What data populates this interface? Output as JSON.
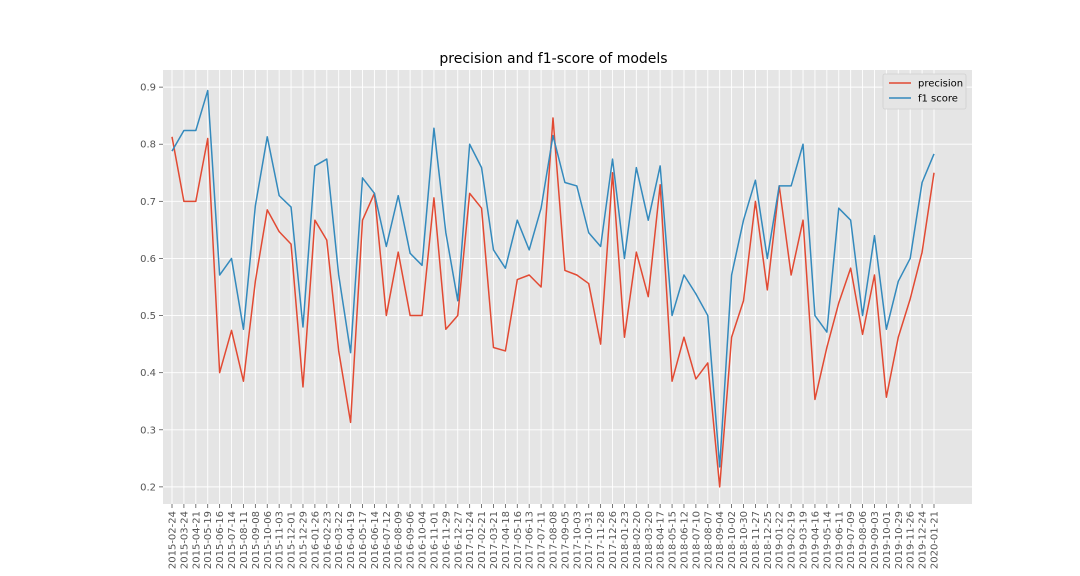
{
  "chart_data": {
    "type": "line",
    "title": "precision and f1-score of models",
    "xlabel": "",
    "ylabel": "",
    "grid": true,
    "legend_position": "top-right",
    "ylim": [
      0.17,
      0.93
    ],
    "yticks": [
      "0.2",
      "0.3",
      "0.4",
      "0.5",
      "0.6",
      "0.7",
      "0.8",
      "0.9"
    ],
    "x": [
      "2015-02-24",
      "2015-03-24",
      "2015-04-21",
      "2015-05-19",
      "2015-06-16",
      "2015-07-14",
      "2015-08-11",
      "2015-09-08",
      "2015-10-06",
      "2015-11-03",
      "2015-12-01",
      "2015-12-29",
      "2016-01-26",
      "2016-02-23",
      "2016-03-22",
      "2016-04-19",
      "2016-05-17",
      "2016-06-14",
      "2016-07-12",
      "2016-08-09",
      "2016-09-06",
      "2016-10-04",
      "2016-11-01",
      "2016-11-29",
      "2016-12-27",
      "2017-01-24",
      "2017-02-21",
      "2017-03-21",
      "2017-04-18",
      "2017-05-16",
      "2017-06-13",
      "2017-07-11",
      "2017-08-08",
      "2017-09-05",
      "2017-10-03",
      "2017-10-31",
      "2017-11-28",
      "2017-12-26",
      "2018-01-23",
      "2018-02-20",
      "2018-03-20",
      "2018-04-17",
      "2018-05-15",
      "2018-06-12",
      "2018-07-10",
      "2018-08-07",
      "2018-09-04",
      "2018-10-02",
      "2018-10-30",
      "2018-11-27",
      "2018-12-25",
      "2019-01-22",
      "2019-02-19",
      "2019-03-19",
      "2019-04-16",
      "2019-05-14",
      "2019-06-11",
      "2019-07-09",
      "2019-08-06",
      "2019-09-03",
      "2019-10-01",
      "2019-10-29",
      "2019-11-26",
      "2019-12-24",
      "2020-01-21"
    ],
    "xtick_labels": [
      "2015-02-24",
      "2015-03-24",
      "2015-04-21",
      "2015-05-19",
      "2015-06-16",
      "2015-07-14",
      "2015-08-11",
      "2015-09-08",
      "2015-10-06",
      "2015-11-03",
      "2015-12-01",
      "2015-12-29",
      "2016-01-26",
      "2016-02-23",
      "2016-03-22",
      "2016-04-19",
      "2016-05-17",
      "2016-06-14",
      "2016-07-12",
      "2016-08-09",
      "2016-09-06",
      "2016-10-04",
      "2016-11-01",
      "2016-11-29",
      "2016-12-27",
      "2017-01-24",
      "2017-02-21",
      "2017-03-21",
      "2017-04-18",
      "2017-05-16",
      "2017-06-13",
      "2017-07-11",
      "2017-08-08",
      "2017-09-05",
      "2017-10-03",
      "2017-10-31",
      "2017-11-28",
      "2017-12-26",
      "2018-01-23",
      "2018-02-20",
      "2018-03-20",
      "2018-04-17",
      "2018-05-15",
      "2018-06-12",
      "2018-07-10",
      "2018-08-07",
      "2018-09-04",
      "2018-10-02",
      "2018-10-30",
      "2018-11-27",
      "2018-12-25",
      "2019-01-22",
      "2019-02-19",
      "2019-03-19",
      "2019-04-16",
      "2019-05-14",
      "2019-06-11",
      "2019-07-09",
      "2019-08-06",
      "2019-09-03",
      "2019-10-01",
      "2019-10-29",
      "2019-11-26",
      "2019-12-24",
      "2020-01-21"
    ],
    "series": [
      {
        "name": "precision",
        "color": "#e24a33",
        "values": [
          0.813,
          0.7,
          0.7,
          0.81,
          0.4,
          0.474,
          0.385,
          0.56,
          0.685,
          0.647,
          0.625,
          0.375,
          0.667,
          0.632,
          0.438,
          0.313,
          0.667,
          0.714,
          0.5,
          0.611,
          0.5,
          0.5,
          0.706,
          0.476,
          0.5,
          0.714,
          0.688,
          0.444,
          0.438,
          0.563,
          0.571,
          0.55,
          0.846,
          0.579,
          0.571,
          0.556,
          0.45,
          0.75,
          0.462,
          0.611,
          0.533,
          0.729,
          0.385,
          0.462,
          0.389,
          0.417,
          0.2,
          0.462,
          0.526,
          0.7,
          0.545,
          0.727,
          0.571,
          0.667,
          0.353,
          0.444,
          0.522,
          0.583,
          0.467,
          0.571,
          0.357,
          0.462,
          0.529,
          0.611,
          0.75
        ]
      },
      {
        "name": "f1 score",
        "color": "#348abd",
        "values": [
          0.788,
          0.824,
          0.824,
          0.894,
          0.571,
          0.6,
          0.476,
          0.692,
          0.813,
          0.71,
          0.69,
          0.48,
          0.762,
          0.774,
          0.571,
          0.435,
          0.741,
          0.714,
          0.621,
          0.71,
          0.609,
          0.588,
          0.828,
          0.645,
          0.526,
          0.8,
          0.759,
          0.615,
          0.583,
          0.667,
          0.615,
          0.688,
          0.815,
          0.733,
          0.727,
          0.645,
          0.621,
          0.774,
          0.6,
          0.759,
          0.667,
          0.762,
          0.5,
          0.571,
          0.538,
          0.5,
          0.235,
          0.571,
          0.667,
          0.737,
          0.6,
          0.727,
          0.727,
          0.8,
          0.5,
          0.471,
          0.688,
          0.667,
          0.5,
          0.64,
          0.476,
          0.56,
          0.6,
          0.733,
          0.783
        ]
      }
    ]
  }
}
